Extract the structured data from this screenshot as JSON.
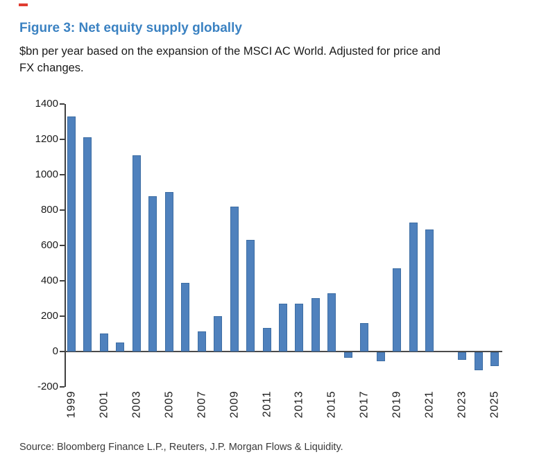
{
  "figure": {
    "title": "Figure 3: Net equity supply globally",
    "subtitle_lines": [
      "$bn per year based on the expansion of the MSCI AC World. Adjusted for price and",
      "FX changes."
    ],
    "source": "Source: Bloomberg Finance L.P., Reuters, J.P. Morgan Flows & Liquidity."
  },
  "colors": {
    "title_blue": "#3b82c2",
    "bar_fill": "#4f81bd",
    "bar_edge": "#3d6da3",
    "axis": "#404040",
    "text": "#1a1a1a",
    "annotation_mark": "#e03c31"
  },
  "chart_data": {
    "type": "bar",
    "title": "Figure 3: Net equity supply globally",
    "subtitle": "$bn per year based on the expansion of the MSCI AC World. Adjusted for price and FX changes.",
    "xlabel": "",
    "ylabel": "$bn per year",
    "x": [
      1999,
      2000,
      2001,
      2002,
      2003,
      2004,
      2005,
      2006,
      2007,
      2008,
      2009,
      2010,
      2011,
      2012,
      2013,
      2014,
      2015,
      2016,
      2017,
      2018,
      2019,
      2020,
      2021,
      2022,
      2023,
      2024,
      2025
    ],
    "values": [
      1330,
      1210,
      100,
      50,
      1110,
      880,
      900,
      390,
      115,
      200,
      820,
      630,
      135,
      270,
      270,
      300,
      330,
      -30,
      160,
      -50,
      470,
      730,
      690,
      0,
      -45,
      -100,
      -80
    ],
    "x_tick_labels": [
      "1999",
      "2001",
      "2003",
      "2005",
      "2007",
      "2009",
      "2011",
      "2013",
      "2015",
      "2017",
      "2019",
      "2021",
      "2023",
      "2025"
    ],
    "y_ticks": [
      1400,
      1200,
      1000,
      800,
      600,
      400,
      200,
      0,
      -200
    ],
    "ylim": [
      -200,
      1400
    ],
    "grid": false,
    "legend": false,
    "bar_color": "#4f81bd",
    "source": "Source: Bloomberg Finance L.P., Reuters, J.P. Morgan Flows & Liquidity."
  }
}
